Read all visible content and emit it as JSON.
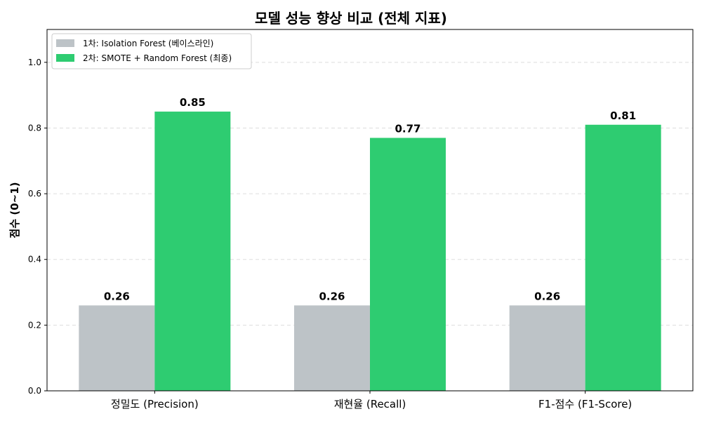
{
  "chart_data": {
    "type": "bar",
    "title": "모델 성능 향상 비교 (전체 지표)",
    "xlabel": "",
    "ylabel": "점수 (0~1)",
    "categories": [
      "정밀도 (Precision)",
      "재현율 (Recall)",
      "F1-점수 (F1-Score)"
    ],
    "series": [
      {
        "name": "1차: Isolation Forest (베이스라인)",
        "values": [
          0.26,
          0.26,
          0.26
        ],
        "color": "#bdc3c7"
      },
      {
        "name": "2차: SMOTE + Random Forest (최종)",
        "values": [
          0.85,
          0.77,
          0.81
        ],
        "color": "#2ecc71"
      }
    ],
    "ylim": [
      0,
      1.1
    ],
    "yticks": [
      0.0,
      0.2,
      0.4,
      0.6,
      0.8,
      1.0
    ],
    "grid": true,
    "legend_position": "top-left"
  }
}
